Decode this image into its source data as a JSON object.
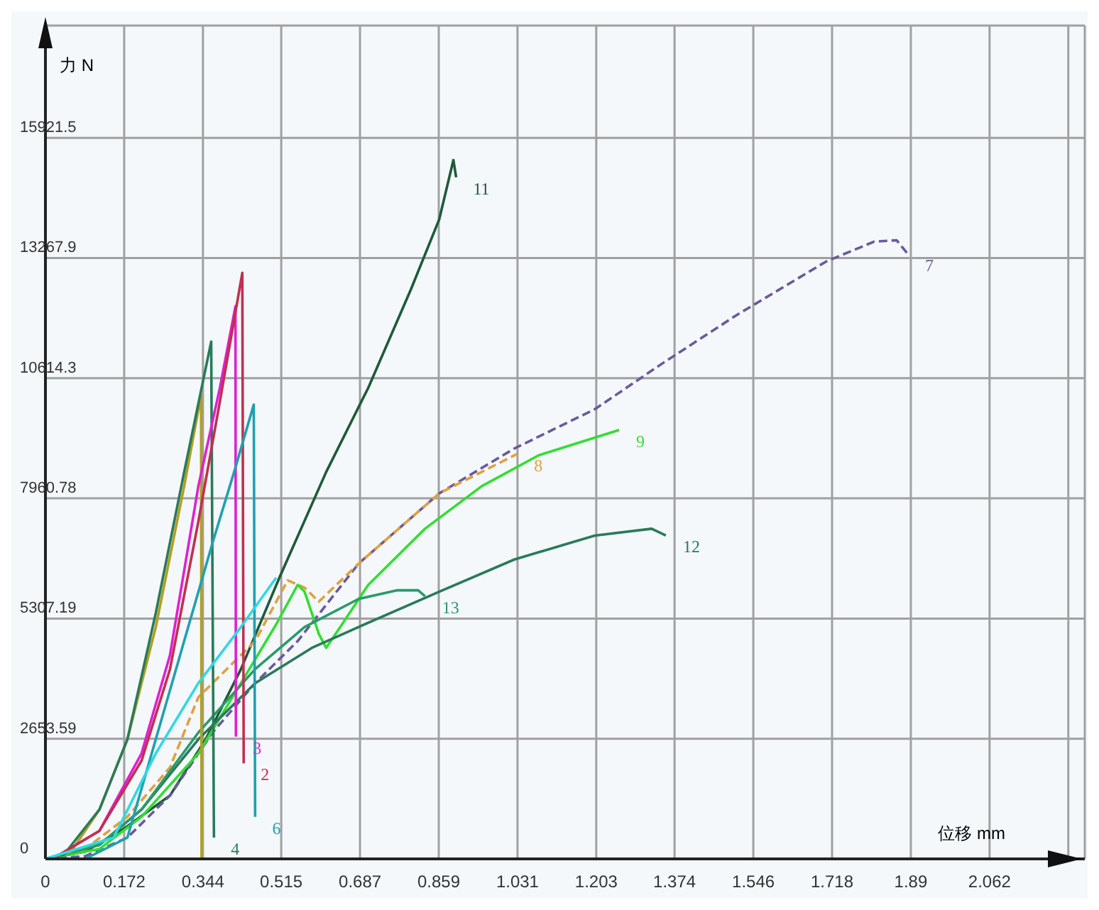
{
  "chart_data": {
    "type": "line",
    "xlabel": "位移 mm",
    "ylabel": "力 N",
    "xlim": [
      0,
      2.27
    ],
    "ylim": [
      0,
      18400
    ],
    "xticks": [
      0,
      0.172,
      0.344,
      0.515,
      0.687,
      0.859,
      1.031,
      1.203,
      1.374,
      1.546,
      1.718,
      1.89,
      2.062,
      {
        "value": 2.234,
        "label": null
      }
    ],
    "yticks": [
      0,
      2653.59,
      5307.19,
      7960.78,
      10614.3,
      13267.9,
      15921.5
    ],
    "grid": true,
    "legend": false,
    "marker": "none",
    "line_style": "solid",
    "series": [
      {
        "name": "11",
        "color": "#1f5a3a",
        "x": [
          0,
          0.087,
          0.173,
          0.272,
          0.35,
          0.427,
          0.511,
          0.613,
          0.705,
          0.798,
          0.86,
          0.891,
          0.897
        ],
        "values": [
          0,
          160,
          680,
          1400,
          2640,
          4190,
          6210,
          8540,
          10400,
          12570,
          14120,
          15430,
          15050
        ]
      },
      {
        "name": "7",
        "color": "#6a5a9a",
        "line_style": "dashed",
        "x": [
          0,
          0.087,
          0.179,
          0.272,
          0.365,
          0.458,
          0.551,
          0.684,
          0.86,
          1.024,
          1.2,
          1.346,
          1.51,
          1.705,
          1.81,
          1.859,
          1.884
        ],
        "values": [
          0,
          60,
          470,
          1400,
          2790,
          3880,
          4810,
          6520,
          8070,
          9060,
          9930,
          10930,
          12010,
          13190,
          13630,
          13660,
          13350
        ]
      },
      {
        "name": "8",
        "color": "#e0a040",
        "line_style": "dashed",
        "x": [
          0,
          0.087,
          0.179,
          0.272,
          0.334,
          0.458,
          0.529,
          0.566,
          0.597,
          0.684,
          0.86,
          1.03
        ],
        "values": [
          0,
          220,
          930,
          2020,
          3570,
          4810,
          6150,
          5990,
          5680,
          6520,
          8070,
          8940
        ]
      },
      {
        "name": "9",
        "color": "#33dd33",
        "x": [
          0,
          0.118,
          0.21,
          0.334,
          0.427,
          0.504,
          0.551,
          0.566,
          0.597,
          0.613,
          0.644,
          0.705,
          0.829,
          0.953,
          1.077,
          1.253
        ],
        "values": [
          0,
          220,
          930,
          2330,
          3880,
          5180,
          6050,
          5900,
          4970,
          4660,
          5120,
          6050,
          7290,
          8230,
          8910,
          9470
        ]
      },
      {
        "name": "12",
        "color": "#2a7a5a",
        "x": [
          0,
          0.118,
          0.21,
          0.334,
          0.458,
          0.582,
          0.684,
          0.86,
          1.024,
          1.2,
          1.324,
          1.355
        ],
        "values": [
          0,
          310,
          1090,
          2640,
          3880,
          4660,
          5120,
          5900,
          6610,
          7140,
          7290,
          7140
        ]
      },
      {
        "name": "13",
        "color": "#2a9a6a",
        "x": [
          0,
          0.118,
          0.21,
          0.334,
          0.458,
          0.566,
          0.684,
          0.767,
          0.814,
          0.829
        ],
        "values": [
          0,
          310,
          1090,
          2790,
          4190,
          5120,
          5740,
          5930,
          5930,
          5800
        ]
      },
      {
        "color": "#b0a020",
        "x": [
          0,
          0.056,
          0.118,
          0.179,
          0.241,
          0.303,
          0.34,
          0.341
        ],
        "values": [
          0,
          160,
          1090,
          2640,
          5120,
          8230,
          10240,
          0
        ]
      },
      {
        "name": "4",
        "color": "#2a7a5a",
        "x": [
          0,
          0.04,
          0.118,
          0.179,
          0.241,
          0.303,
          0.362,
          0.368
        ],
        "values": [
          0,
          90,
          1090,
          2640,
          5430,
          8540,
          11420,
          470
        ]
      },
      {
        "name": "3",
        "color": "#e020d0",
        "x": [
          0,
          0.025,
          0.118,
          0.21,
          0.272,
          0.334,
          0.381,
          0.415,
          0.416
        ],
        "values": [
          0,
          60,
          620,
          2330,
          4500,
          8230,
          10400,
          12200,
          2700
        ]
      },
      {
        "name": "2",
        "color": "#c03050",
        "x": [
          0,
          0.025,
          0.118,
          0.21,
          0.272,
          0.334,
          0.381,
          0.43,
          0.433
        ],
        "values": [
          0,
          60,
          620,
          2170,
          4190,
          7450,
          10100,
          12940,
          2110
        ]
      },
      {
        "name": "6",
        "color": "#20a0b0",
        "x": [
          0,
          0.087,
          0.179,
          0.241,
          0.303,
          0.365,
          0.412,
          0.455,
          0.458
        ],
        "values": [
          0,
          0,
          470,
          2640,
          4810,
          6980,
          8540,
          10030,
          930
        ]
      },
      {
        "color": "#30d8e0",
        "x": [
          0,
          0.149,
          0.241,
          0.334,
          0.427,
          0.504
        ],
        "values": [
          0,
          470,
          2330,
          3880,
          5120,
          6210
        ]
      }
    ]
  }
}
